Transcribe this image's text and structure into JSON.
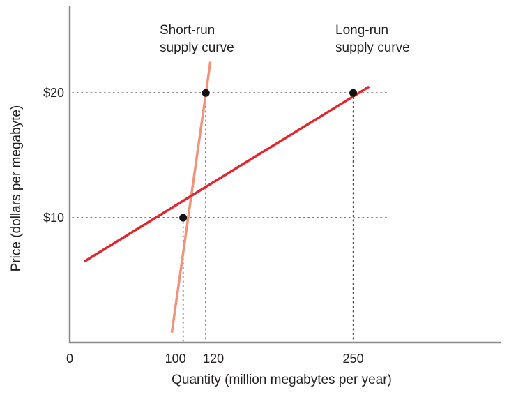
{
  "chart_data": {
    "type": "line",
    "title": "",
    "xlabel": "Quantity (million megabytes per year)",
    "ylabel": "Price (dollars per megabyte)",
    "xlim": [
      0,
      380
    ],
    "ylim": [
      0,
      27
    ],
    "x_ticks": [
      {
        "value": 0,
        "label": "0"
      },
      {
        "value": 100,
        "label": "100"
      },
      {
        "value": 120,
        "label": "120"
      },
      {
        "value": 250,
        "label": "250"
      }
    ],
    "y_ticks": [
      {
        "value": 10,
        "label": "$10"
      },
      {
        "value": 20,
        "label": "$20"
      }
    ],
    "grid": false,
    "series": [
      {
        "name": "Short-run supply curve",
        "label_lines": [
          "Short-run",
          "supply curve"
        ],
        "color": "#f0937a",
        "points": [
          [
            90,
            0.8
          ],
          [
            124,
            22.5
          ]
        ]
      },
      {
        "name": "Long-run supply curve",
        "label_lines": [
          "Long-run",
          "supply curve"
        ],
        "color": "#e2262e",
        "points": [
          [
            13,
            6.5
          ],
          [
            264,
            20.5
          ]
        ]
      }
    ],
    "points": [
      {
        "x": 100,
        "y": 10
      },
      {
        "x": 120,
        "y": 20
      },
      {
        "x": 250,
        "y": 20
      }
    ],
    "reference_lines": {
      "horizontal": [
        {
          "y": 10,
          "x_to": 280
        },
        {
          "y": 20,
          "x_to": 280
        }
      ],
      "vertical": [
        {
          "x": 100,
          "y_to": 10
        },
        {
          "x": 120,
          "y_to": 20
        },
        {
          "x": 250,
          "y_to": 20
        }
      ]
    },
    "colors": {
      "axis": "#8a8a8a",
      "dots": "#111111",
      "reference": "#4a4a4a"
    }
  }
}
